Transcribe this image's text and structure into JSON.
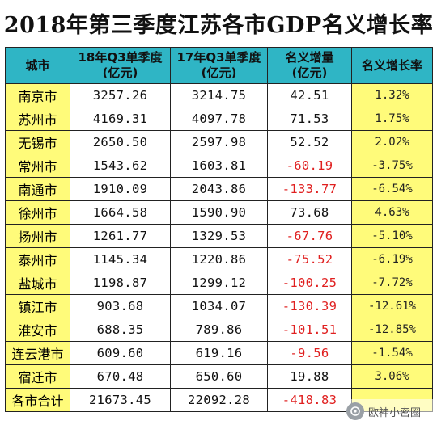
{
  "title": "2018年第三季度江苏各市GDP名义增长率",
  "headers": {
    "city": "城市",
    "q3_2018_line1": "18年Q3单季度",
    "q3_2018_line2": "(亿元)",
    "q3_2017_line1": "17年Q3单季度",
    "q3_2017_line2": "(亿元)",
    "increase_line1": "名义增量",
    "increase_line2": "(亿元)",
    "rate": "名义增长率"
  },
  "rows": [
    {
      "city": "南京市",
      "q3_2018": "3257.26",
      "q3_2017": "3214.75",
      "increase": "42.51",
      "rate": "1.32%"
    },
    {
      "city": "苏州市",
      "q3_2018": "4169.31",
      "q3_2017": "4097.78",
      "increase": "71.53",
      "rate": "1.75%"
    },
    {
      "city": "无锡市",
      "q3_2018": "2650.50",
      "q3_2017": "2597.98",
      "increase": "52.52",
      "rate": "2.02%"
    },
    {
      "city": "常州市",
      "q3_2018": "1543.62",
      "q3_2017": "1603.81",
      "increase": "-60.19",
      "rate": "-3.75%"
    },
    {
      "city": "南通市",
      "q3_2018": "1910.09",
      "q3_2017": "2043.86",
      "increase": "-133.77",
      "rate": "-6.54%"
    },
    {
      "city": "徐州市",
      "q3_2018": "1664.58",
      "q3_2017": "1590.90",
      "increase": "73.68",
      "rate": "4.63%"
    },
    {
      "city": "扬州市",
      "q3_2018": "1261.77",
      "q3_2017": "1329.53",
      "increase": "-67.76",
      "rate": "-5.10%"
    },
    {
      "city": "泰州市",
      "q3_2018": "1145.34",
      "q3_2017": "1220.86",
      "increase": "-75.52",
      "rate": "-6.19%"
    },
    {
      "city": "盐城市",
      "q3_2018": "1198.87",
      "q3_2017": "1299.12",
      "increase": "-100.25",
      "rate": "-7.72%"
    },
    {
      "city": "镇江市",
      "q3_2018": "903.68",
      "q3_2017": "1034.07",
      "increase": "-130.39",
      "rate": "-12.61%"
    },
    {
      "city": "淮安市",
      "q3_2018": "688.35",
      "q3_2017": "789.86",
      "increase": "-101.51",
      "rate": "-12.85%"
    },
    {
      "city": "连云港市",
      "q3_2018": "609.60",
      "q3_2017": "619.16",
      "increase": "-9.56",
      "rate": "-1.54%"
    },
    {
      "city": "宿迁市",
      "q3_2018": "670.48",
      "q3_2017": "650.60",
      "increase": "19.88",
      "rate": "3.06%"
    }
  ],
  "total": {
    "city": "各市合计",
    "q3_2018": "21673.45",
    "q3_2017": "22092.28",
    "increase": "-418.83",
    "rate": ""
  },
  "watermark": {
    "text": "欧神小密圈",
    "logo_icon": "wechat-channel-icon"
  },
  "colors": {
    "header_bg": "#2fb5c5",
    "highlight_bg": "#fffb7a",
    "negative": "#e02020"
  }
}
